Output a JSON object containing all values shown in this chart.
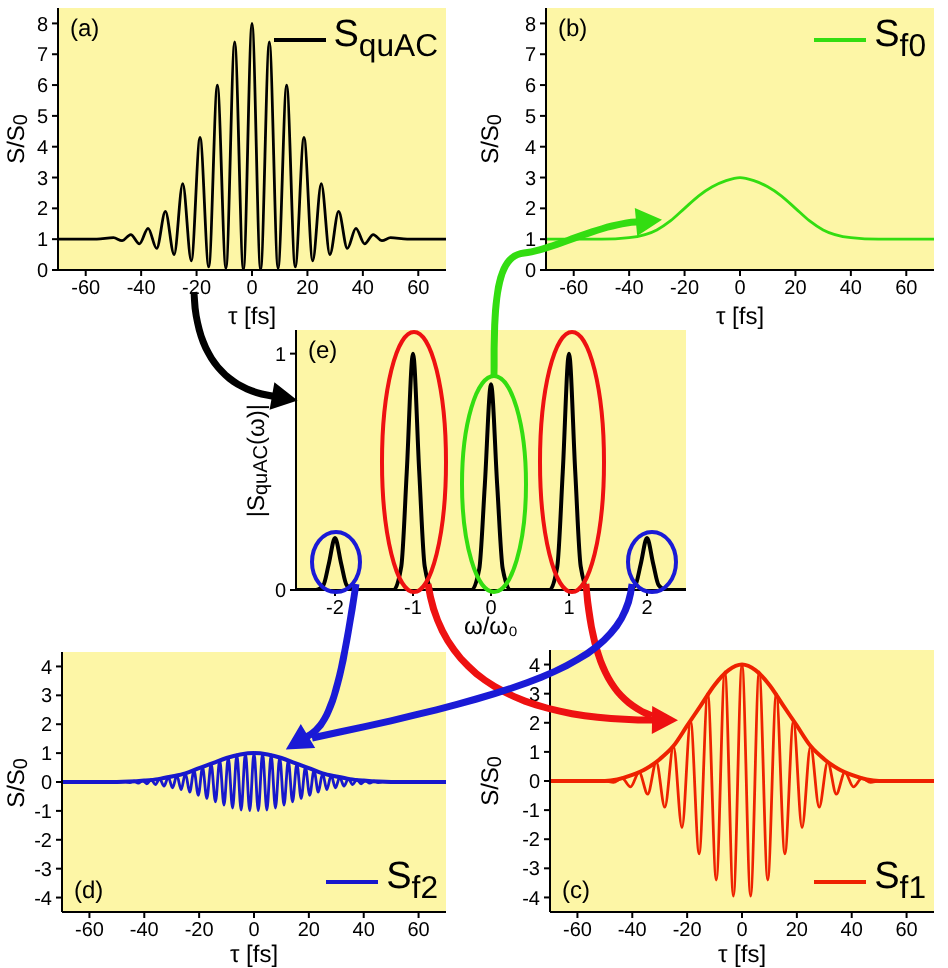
{
  "chart_data": [
    {
      "type": "line",
      "xlabel": "τ [fs]",
      "ylabel": "S/S$_{0}$",
      "xlim": [
        -70,
        70
      ],
      "ylim": [
        0,
        8.5
      ],
      "xticks": [
        -60,
        -40,
        -20,
        0,
        20,
        40,
        60
      ],
      "yticks": [
        0,
        1,
        2,
        3,
        4,
        5,
        6,
        7,
        8
      ],
      "legend": "top right",
      "annotations": [
        "(a)"
      ],
      "series": [
        {
          "name": "S$_{quAC}$",
          "color": "#000000",
          "x": [
            -70,
            -56,
            -50,
            -46.9,
            -43.75,
            -40.6,
            -37.5,
            -34.4,
            -31.25,
            -28.1,
            -25,
            -21.9,
            -18.75,
            -15.6,
            -12.5,
            -9.4,
            -6.25,
            -3.1,
            0,
            3.1,
            6.25,
            9.4,
            12.5,
            15.6,
            18.75,
            21.9,
            25,
            28.1,
            31.25,
            34.4,
            37.5,
            40.6,
            43.75,
            46.9,
            50,
            56,
            70
          ],
          "values": [
            1,
            1,
            1.05,
            0.95,
            1.15,
            0.85,
            1.35,
            0.7,
            1.9,
            0.5,
            2.8,
            0.3,
            4.3,
            0.1,
            6.0,
            0.05,
            7.4,
            0,
            8,
            0,
            7.4,
            0.05,
            6.0,
            0.1,
            4.3,
            0.3,
            2.8,
            0.5,
            1.9,
            0.7,
            1.35,
            0.85,
            1.15,
            0.95,
            1.05,
            1,
            1
          ]
        }
      ]
    },
    {
      "type": "line",
      "xlabel": "τ [fs]",
      "ylabel": "S/S$_{0}$",
      "xlim": [
        -70,
        70
      ],
      "ylim": [
        0,
        8.5
      ],
      "xticks": [
        -60,
        -40,
        -20,
        0,
        20,
        40,
        60
      ],
      "yticks": [
        0,
        1,
        2,
        3,
        4,
        5,
        6,
        7,
        8
      ],
      "legend": "top right",
      "annotations": [
        "(b)"
      ],
      "series": [
        {
          "name": "S$_{f0}$",
          "color": "#33dd11",
          "x": [
            -70,
            -50,
            -40,
            -30,
            -25,
            -20,
            -15,
            -10,
            -5,
            0,
            5,
            10,
            15,
            20,
            25,
            30,
            40,
            50,
            70
          ],
          "values": [
            1,
            1,
            1.05,
            1.3,
            1.6,
            2.0,
            2.4,
            2.7,
            2.9,
            3,
            2.9,
            2.7,
            2.4,
            2.0,
            1.6,
            1.3,
            1.05,
            1,
            1
          ]
        }
      ]
    },
    {
      "type": "line",
      "xlabel": "ω/ω₀",
      "ylabel": "|S$_{quAC}$(ω)|",
      "xlim": [
        -2.5,
        2.5
      ],
      "ylim": [
        0,
        1.1
      ],
      "xticks": [
        -2,
        -1,
        0,
        1,
        2
      ],
      "yticks": [
        0,
        1
      ],
      "annotations": [
        "(e)"
      ],
      "series": [
        {
          "color": "#000000",
          "x": [
            -2.5,
            -2.25,
            -2.15,
            -2.08,
            -2,
            -1.92,
            -1.85,
            -1.75,
            -1.25,
            -1.15,
            -1.08,
            -1,
            -0.92,
            -0.85,
            -0.75,
            -0.25,
            -0.15,
            -0.08,
            0,
            0.08,
            0.15,
            0.25,
            0.75,
            0.85,
            0.92,
            1,
            1.08,
            1.15,
            1.25,
            1.75,
            1.85,
            1.92,
            2,
            2.08,
            2.15,
            2.25,
            2.5
          ],
          "values": [
            0,
            0,
            0.02,
            0.11,
            0.22,
            0.11,
            0.02,
            0,
            0,
            0.1,
            0.5,
            1,
            0.5,
            0.1,
            0,
            0,
            0.09,
            0.44,
            0.87,
            0.44,
            0.09,
            0,
            0,
            0.1,
            0.5,
            1,
            0.5,
            0.1,
            0,
            0,
            0.02,
            0.11,
            0.22,
            0.11,
            0.02,
            0,
            0
          ]
        }
      ]
    },
    {
      "type": "line",
      "xlabel": "τ [fs]",
      "ylabel": "S/S$_{0}$",
      "xlim": [
        -70,
        70
      ],
      "ylim": [
        -4.5,
        4.5
      ],
      "xticks": [
        -60,
        -40,
        -20,
        0,
        20,
        40,
        60
      ],
      "yticks": [
        -4,
        -3,
        -2,
        -1,
        0,
        1,
        2,
        3,
        4
      ],
      "legend": "bottom right",
      "annotations": [
        "(d)"
      ],
      "series": [
        {
          "name": "S$_{f2}$",
          "color": "#1818cc",
          "x": [
            -70,
            -50,
            -46.88,
            -45.31,
            -43.75,
            -42.19,
            -40.63,
            -39.06,
            -37.5,
            -35.94,
            -34.38,
            -32.81,
            -31.25,
            -29.69,
            -28.13,
            -26.56,
            -25,
            -23.44,
            -21.88,
            -20.31,
            -18.75,
            -17.19,
            -15.63,
            -14.06,
            -12.5,
            -10.94,
            -9.38,
            -7.81,
            -6.25,
            -4.69,
            -3.13,
            -1.56,
            0,
            1.56,
            3.13,
            4.69,
            6.25,
            7.81,
            9.38,
            10.94,
            12.5,
            14.06,
            15.63,
            17.19,
            18.75,
            20.31,
            21.88,
            23.44,
            25,
            26.56,
            28.13,
            29.69,
            31.25,
            32.81,
            34.38,
            35.94,
            37.5,
            39.06,
            40.63,
            42.19,
            43.75,
            45.31,
            46.88,
            50,
            70
          ],
          "values": [
            0,
            0,
            0.01,
            -0.02,
            0.03,
            -0.04,
            0.05,
            -0.06,
            0.08,
            -0.09,
            0.11,
            -0.14,
            0.16,
            -0.2,
            0.23,
            -0.26,
            0.3,
            -0.35,
            0.4,
            -0.46,
            0.51,
            -0.57,
            0.63,
            -0.69,
            0.75,
            -0.8,
            0.85,
            -0.9,
            0.94,
            -0.97,
            0.99,
            -0.99,
            1,
            -0.99,
            0.99,
            -0.97,
            0.94,
            -0.9,
            0.85,
            -0.8,
            0.75,
            -0.69,
            0.63,
            -0.57,
            0.51,
            -0.46,
            0.4,
            -0.35,
            0.3,
            -0.26,
            0.23,
            -0.2,
            0.16,
            -0.14,
            0.11,
            -0.09,
            0.08,
            -0.06,
            0.05,
            -0.04,
            0.03,
            -0.02,
            0.01,
            0,
            0
          ]
        },
        {
          "color": "#1818cc",
          "x": [
            -70,
            -50,
            -40,
            -35,
            -30,
            -25,
            -20,
            -15,
            -10,
            -5,
            0,
            5,
            10,
            15,
            20,
            25,
            30,
            35,
            40,
            50,
            70
          ],
          "values": [
            0,
            0,
            0.05,
            0.1,
            0.19,
            0.3,
            0.48,
            0.65,
            0.83,
            0.95,
            1,
            0.95,
            0.83,
            0.65,
            0.48,
            0.3,
            0.19,
            0.1,
            0.05,
            0,
            0
          ]
        }
      ]
    },
    {
      "type": "line",
      "xlabel": "τ [fs]",
      "ylabel": "S/S$_{0}$",
      "xlim": [
        -70,
        70
      ],
      "ylim": [
        -4.5,
        4.5
      ],
      "xticks": [
        -60,
        -40,
        -20,
        0,
        20,
        40,
        60
      ],
      "yticks": [
        -4,
        -3,
        -2,
        -1,
        0,
        1,
        2,
        3,
        4
      ],
      "legend": "bottom right",
      "annotations": [
        "(c)"
      ],
      "series": [
        {
          "name": "S$_{f1}$",
          "color": "#ee2200",
          "x": [
            -70,
            -50,
            -46.88,
            -43.75,
            -40.63,
            -37.5,
            -34.38,
            -31.25,
            -28.13,
            -25,
            -21.88,
            -18.75,
            -15.63,
            -12.5,
            -9.38,
            -6.25,
            -3.13,
            0,
            3.13,
            6.25,
            9.38,
            12.5,
            15.63,
            18.75,
            21.88,
            25,
            28.13,
            31.25,
            34.38,
            37.5,
            40.63,
            43.75,
            46.88,
            50,
            70
          ],
          "values": [
            0,
            0,
            -0.05,
            0.1,
            -0.2,
            0.3,
            -0.45,
            0.65,
            -0.9,
            1.2,
            -1.6,
            2.05,
            -2.5,
            3.0,
            -3.4,
            3.75,
            -3.95,
            4,
            -3.95,
            3.75,
            -3.4,
            3.0,
            -2.5,
            2.05,
            -1.6,
            1.2,
            -0.9,
            0.65,
            -0.45,
            0.3,
            -0.2,
            0.1,
            -0.05,
            0,
            0
          ]
        },
        {
          "color": "#ee2200",
          "x": [
            -70,
            -50,
            -40,
            -35,
            -30,
            -25,
            -20,
            -15,
            -10,
            -5,
            0,
            5,
            10,
            15,
            20,
            25,
            30,
            35,
            40,
            50,
            70
          ],
          "values": [
            0,
            0,
            0.21,
            0.42,
            0.75,
            1.2,
            1.9,
            2.6,
            3.3,
            3.8,
            4,
            3.8,
            3.3,
            2.6,
            1.9,
            1.2,
            0.75,
            0.42,
            0.21,
            0,
            0
          ]
        }
      ]
    }
  ]
}
